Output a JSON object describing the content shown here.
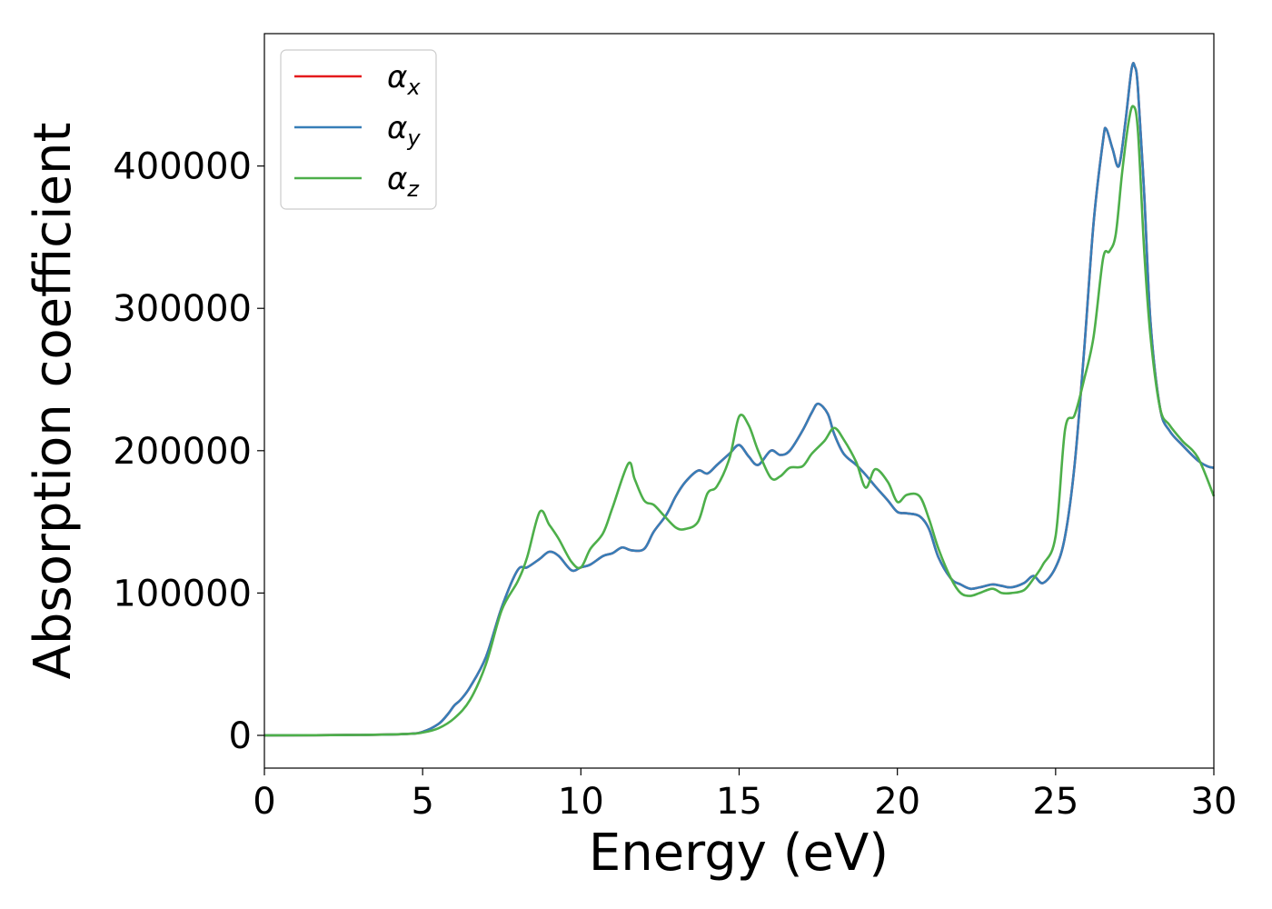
{
  "chart_data": {
    "type": "line",
    "xlabel": "Energy (eV)",
    "ylabel": "Absorption coefficient",
    "xlim": [
      0,
      30
    ],
    "ylim": [
      -23000,
      493000
    ],
    "xticks": [
      0,
      5,
      10,
      15,
      20,
      25,
      30
    ],
    "xtick_labels": [
      "0",
      "5",
      "10",
      "15",
      "20",
      "25",
      "30"
    ],
    "yticks": [
      0,
      100000,
      200000,
      300000,
      400000
    ],
    "ytick_labels": [
      "0",
      "100000",
      "200000",
      "300000",
      "400000"
    ],
    "grid": false,
    "legend_position": "top-left",
    "series": [
      {
        "name": "α",
        "subscript": "x",
        "color": "#e41a1c",
        "x": [
          0,
          3,
          4.5,
          5,
          5.5,
          5.8,
          6.0,
          6.2,
          6.5,
          7.0,
          7.5,
          8.0,
          8.3,
          8.7,
          9.0,
          9.3,
          9.7,
          10.0,
          10.3,
          10.7,
          11.0,
          11.3,
          11.6,
          12.0,
          12.3,
          12.7,
          13.0,
          13.3,
          13.7,
          14.0,
          14.3,
          14.7,
          15.0,
          15.3,
          15.6,
          16.0,
          16.3,
          16.6,
          17.0,
          17.3,
          17.5,
          17.8,
          18.0,
          18.3,
          18.7,
          19.0,
          19.3,
          19.7,
          20.0,
          20.3,
          20.7,
          21.0,
          21.3,
          21.7,
          22.0,
          22.3,
          22.6,
          23.0,
          23.3,
          23.6,
          24.0,
          24.3,
          24.6,
          25.0,
          25.3,
          25.6,
          25.9,
          26.2,
          26.5,
          26.6,
          26.8,
          27.0,
          27.2,
          27.4,
          27.5,
          27.6,
          27.8,
          28.0,
          28.3,
          28.6,
          29.0,
          29.5,
          29.8,
          30.0
        ],
        "y": [
          0,
          300,
          1000,
          2500,
          8000,
          15000,
          21000,
          25000,
          34000,
          55000,
          90000,
          116000,
          118000,
          124000,
          129000,
          126000,
          116000,
          118000,
          120000,
          126000,
          128000,
          132000,
          130000,
          131000,
          143000,
          155000,
          168000,
          178000,
          186000,
          184000,
          190000,
          198000,
          204000,
          196000,
          190000,
          200000,
          197000,
          200000,
          214000,
          227000,
          233000,
          226000,
          212000,
          198000,
          190000,
          183000,
          175000,
          165000,
          157000,
          156000,
          154000,
          145000,
          125000,
          110000,
          106000,
          103000,
          104000,
          106000,
          105000,
          104000,
          107000,
          112000,
          107000,
          118000,
          140000,
          190000,
          270000,
          360000,
          418000,
          426000,
          412000,
          400000,
          430000,
          468000,
          470000,
          455000,
          380000,
          290000,
          230000,
          214000,
          204000,
          193000,
          189000,
          188000
        ]
      },
      {
        "name": "α",
        "subscript": "y",
        "color": "#377eb8",
        "x": [
          0,
          3,
          4.5,
          5,
          5.5,
          5.8,
          6.0,
          6.2,
          6.5,
          7.0,
          7.5,
          8.0,
          8.3,
          8.7,
          9.0,
          9.3,
          9.7,
          10.0,
          10.3,
          10.7,
          11.0,
          11.3,
          11.6,
          12.0,
          12.3,
          12.7,
          13.0,
          13.3,
          13.7,
          14.0,
          14.3,
          14.7,
          15.0,
          15.3,
          15.6,
          16.0,
          16.3,
          16.6,
          17.0,
          17.3,
          17.5,
          17.8,
          18.0,
          18.3,
          18.7,
          19.0,
          19.3,
          19.7,
          20.0,
          20.3,
          20.7,
          21.0,
          21.3,
          21.7,
          22.0,
          22.3,
          22.6,
          23.0,
          23.3,
          23.6,
          24.0,
          24.3,
          24.6,
          25.0,
          25.3,
          25.6,
          25.9,
          26.2,
          26.5,
          26.6,
          26.8,
          27.0,
          27.2,
          27.4,
          27.5,
          27.6,
          27.8,
          28.0,
          28.3,
          28.6,
          29.0,
          29.5,
          29.8,
          30.0
        ],
        "y": [
          0,
          300,
          1000,
          2500,
          8000,
          15000,
          21000,
          25000,
          34000,
          55000,
          90000,
          116000,
          118000,
          124000,
          129000,
          126000,
          116000,
          118000,
          120000,
          126000,
          128000,
          132000,
          130000,
          131000,
          143000,
          155000,
          168000,
          178000,
          186000,
          184000,
          190000,
          198000,
          204000,
          196000,
          190000,
          200000,
          197000,
          200000,
          214000,
          227000,
          233000,
          226000,
          212000,
          198000,
          190000,
          183000,
          175000,
          165000,
          157000,
          156000,
          154000,
          145000,
          125000,
          110000,
          106000,
          103000,
          104000,
          106000,
          105000,
          104000,
          107000,
          112000,
          107000,
          118000,
          140000,
          190000,
          270000,
          360000,
          418000,
          426000,
          412000,
          400000,
          430000,
          468000,
          470000,
          455000,
          380000,
          290000,
          230000,
          214000,
          204000,
          193000,
          189000,
          188000
        ]
      },
      {
        "name": "α",
        "subscript": "z",
        "color": "#4daf4a",
        "x": [
          0,
          3,
          4.5,
          5,
          5.5,
          6.0,
          6.5,
          7.0,
          7.5,
          8.0,
          8.3,
          8.7,
          9.0,
          9.3,
          9.7,
          10.0,
          10.3,
          10.7,
          11.0,
          11.5,
          11.7,
          12.0,
          12.3,
          12.6,
          13.0,
          13.3,
          13.7,
          14.0,
          14.3,
          14.7,
          15.0,
          15.3,
          15.6,
          16.0,
          16.3,
          16.6,
          17.0,
          17.3,
          17.7,
          18.0,
          18.3,
          18.7,
          19.0,
          19.3,
          19.7,
          20.0,
          20.3,
          20.7,
          21.0,
          21.3,
          21.7,
          22.0,
          22.3,
          22.6,
          23.0,
          23.3,
          23.6,
          24.0,
          24.3,
          24.6,
          25.0,
          25.3,
          25.6,
          25.9,
          26.2,
          26.5,
          26.7,
          26.9,
          27.1,
          27.3,
          27.45,
          27.6,
          27.8,
          28.0,
          28.3,
          28.6,
          29.0,
          29.5,
          30.0
        ],
        "y": [
          0,
          300,
          1000,
          2000,
          5000,
          12000,
          25000,
          50000,
          88000,
          108000,
          125000,
          157000,
          148000,
          138000,
          122000,
          118000,
          131000,
          142000,
          160000,
          191000,
          180000,
          165000,
          162000,
          155000,
          146000,
          145000,
          150000,
          170000,
          175000,
          195000,
          224000,
          218000,
          200000,
          181000,
          182000,
          188000,
          189000,
          198000,
          207000,
          216000,
          208000,
          192000,
          174000,
          187000,
          178000,
          164000,
          169000,
          168000,
          152000,
          131000,
          110000,
          100000,
          98000,
          100000,
          103000,
          100000,
          100000,
          102000,
          110000,
          120000,
          140000,
          215000,
          225000,
          250000,
          280000,
          335000,
          340000,
          352000,
          395000,
          430000,
          442000,
          425000,
          340000,
          280000,
          230000,
          218000,
          207000,
          195000,
          168000
        ]
      }
    ]
  }
}
